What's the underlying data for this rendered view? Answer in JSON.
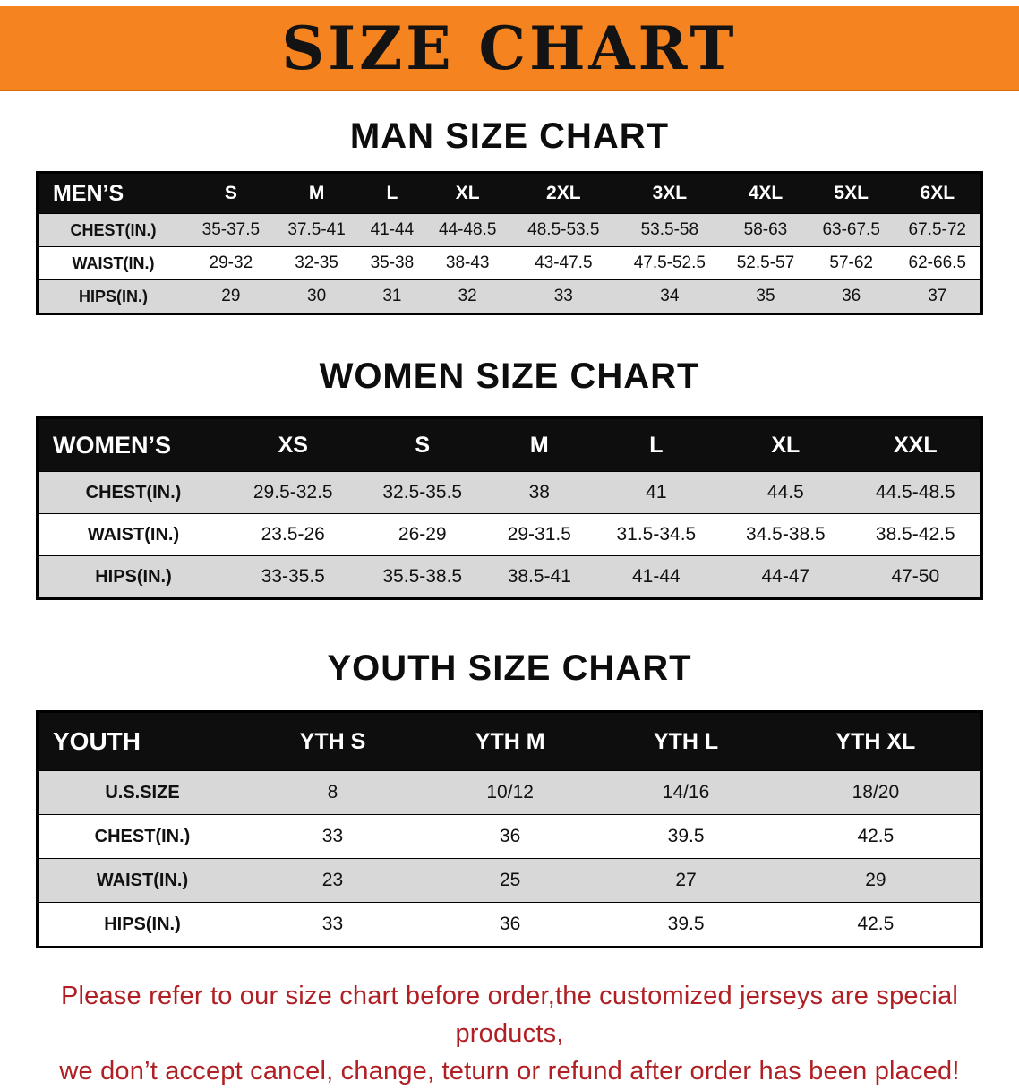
{
  "banner": {
    "title": "SIZE CHART",
    "bg_color": "#F5831F",
    "text_color": "#131313"
  },
  "colors": {
    "table_header_bg": "#0E0E0E",
    "table_header_text": "#FFFFFF",
    "alt_row_bg": "#D8D8D8",
    "disclaimer_text": "#B01F24"
  },
  "sections": [
    {
      "id": "men",
      "heading": "MAN SIZE CHART",
      "table": {
        "corner": "MEN’S",
        "columns": [
          "S",
          "M",
          "L",
          "XL",
          "2XL",
          "3XL",
          "4XL",
          "5XL",
          "6XL"
        ],
        "rows": [
          {
            "label": "CHEST(IN.)",
            "values": [
              "35-37.5",
              "37.5-41",
              "41-44",
              "44-48.5",
              "48.5-53.5",
              "53.5-58",
              "58-63",
              "63-67.5",
              "67.5-72"
            ]
          },
          {
            "label": "WAIST(IN.)",
            "values": [
              "29-32",
              "32-35",
              "35-38",
              "38-43",
              "43-47.5",
              "47.5-52.5",
              "52.5-57",
              "57-62",
              "62-66.5"
            ]
          },
          {
            "label": "HIPS(IN.)",
            "values": [
              "29",
              "30",
              "31",
              "32",
              "33",
              "34",
              "35",
              "36",
              "37"
            ]
          }
        ]
      }
    },
    {
      "id": "women",
      "heading": "WOMEN SIZE CHART",
      "table": {
        "corner": "WOMEN’S",
        "columns": [
          "XS",
          "S",
          "M",
          "L",
          "XL",
          "XXL"
        ],
        "rows": [
          {
            "label": "CHEST(IN.)",
            "values": [
              "29.5-32.5",
              "32.5-35.5",
              "38",
              "41",
              "44.5",
              "44.5-48.5"
            ]
          },
          {
            "label": "WAIST(IN.)",
            "values": [
              "23.5-26",
              "26-29",
              "29-31.5",
              "31.5-34.5",
              "34.5-38.5",
              "38.5-42.5"
            ]
          },
          {
            "label": "HIPS(IN.)",
            "values": [
              "33-35.5",
              "35.5-38.5",
              "38.5-41",
              "41-44",
              "44-47",
              "47-50"
            ]
          }
        ]
      }
    },
    {
      "id": "youth",
      "heading": "YOUTH SIZE CHART",
      "table": {
        "corner": "YOUTH",
        "columns": [
          "YTH S",
          "YTH M",
          "YTH L",
          "YTH XL"
        ],
        "rows": [
          {
            "label": "U.S.SIZE",
            "values": [
              "8",
              "10/12",
              "14/16",
              "18/20"
            ]
          },
          {
            "label": "CHEST(IN.)",
            "values": [
              "33",
              "36",
              "39.5",
              "42.5"
            ]
          },
          {
            "label": "WAIST(IN.)",
            "values": [
              "23",
              "25",
              "27",
              "29"
            ]
          },
          {
            "label": "HIPS(IN.)",
            "values": [
              "33",
              "36",
              "39.5",
              "42.5"
            ]
          }
        ]
      }
    }
  ],
  "disclaimer": {
    "line1": "Please refer to our size chart before order,the customized jerseys are special products,",
    "line2": "we don’t accept cancel, change, teturn or refund after order has been placed!"
  }
}
